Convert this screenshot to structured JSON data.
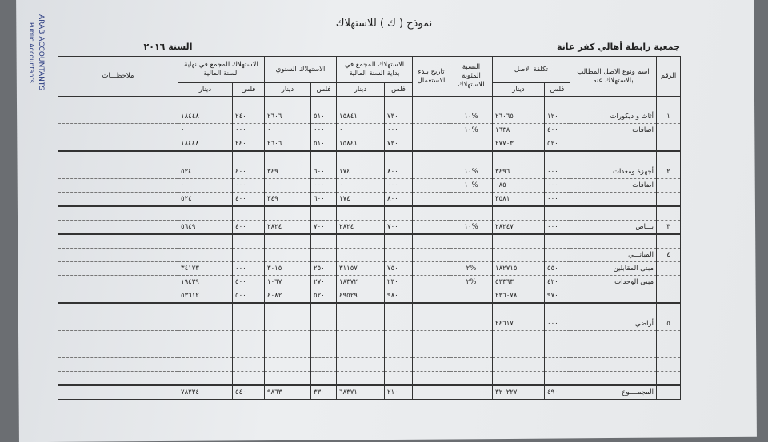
{
  "document": {
    "title": "نموذج ( ك ) للاستهلاك",
    "organization": "جمعية رابطة أهالي كفر عانة",
    "year": "السنة ٢٠١٦",
    "stamp": [
      "ARAB ACCOUNTANTS",
      "Public Accountants"
    ]
  },
  "table": {
    "headers": {
      "no": "الرقم",
      "asset": "اسم ونوع الاصل المطالب بالاستهلاك عنه",
      "cost": "تكلفة الاصل",
      "rate": "النسبة المئوية للاستهلاك",
      "start": "تاريخ بـدء الاستعمال",
      "opening": "الاستهلاك المجمع في بداية السنة المالية",
      "annual": "الاستهلاك السنوي",
      "closing": "الاستهلاك المجمع في نهاية السنة المالية",
      "notes": "ملاحظـــات",
      "fils": "فلس",
      "dinar": "دينار"
    },
    "rows": [
      {
        "type": "blank"
      },
      {
        "no": "١",
        "name": "أثاث و ديكورات",
        "cost_fils": "١٢٠",
        "cost_dinar": "٢٦٠٦٥",
        "rate": "%١٠",
        "open_fils": "٧٣٠",
        "open_dinar": "١٥٨٤١",
        "annual_fils": "٥١٠",
        "annual_dinar": "٢٦٠٦",
        "close_fils": "٢٤٠",
        "close_dinar": "١٨٤٤٨"
      },
      {
        "name": "اضافات",
        "cost_fils": "٤٠٠",
        "cost_dinar": "١٦٣٨",
        "rate": "%١٠",
        "open_fils": "٠٠٠",
        "open_dinar": "٠",
        "annual_fils": "٠٠٠",
        "annual_dinar": "٠",
        "close_fils": "٠٠٠",
        "close_dinar": "٠"
      },
      {
        "type": "total",
        "cost_fils": "٥٢٠",
        "cost_dinar": "٢٧٧٠٣",
        "open_fils": "٧٣٠",
        "open_dinar": "١٥٨٤١",
        "annual_fils": "٥١٠",
        "annual_dinar": "٢٦٠٦",
        "close_fils": "٢٤٠",
        "close_dinar": "١٨٤٤٨"
      },
      {
        "type": "blank"
      },
      {
        "no": "٢",
        "name": "أجهزة ومعدات",
        "cost_fils": "٠٠٠",
        "cost_dinar": "٣٤٩٦",
        "rate": "%١٠",
        "open_fils": "٨٠٠",
        "open_dinar": "١٧٤",
        "annual_fils": "٦٠٠",
        "annual_dinar": "٣٤٩",
        "close_fils": "٤٠٠",
        "close_dinar": "٥٢٤"
      },
      {
        "name": "اضافات",
        "cost_fils": "٠٠٠",
        "cost_dinar": "٠٨٥",
        "rate": "%١٠",
        "open_fils": "٠٠٠",
        "open_dinar": "٠",
        "annual_fils": "٠٠٠",
        "annual_dinar": "٠",
        "close_fils": "٠٠٠",
        "close_dinar": "٠"
      },
      {
        "type": "total",
        "cost_fils": "٠٠٠",
        "cost_dinar": "٣٥٨١",
        "open_fils": "٨٠٠",
        "open_dinar": "١٧٤",
        "annual_fils": "٦٠٠",
        "annual_dinar": "٣٤٩",
        "close_fils": "٤٠٠",
        "close_dinar": "٥٢٤"
      },
      {
        "type": "blank"
      },
      {
        "type": "total",
        "no": "٣",
        "name": "بـــاص",
        "cost_fils": "٠٠٠",
        "cost_dinar": "٢٨٢٤٧",
        "rate": "%١٠",
        "open_fils": "٧٠٠",
        "open_dinar": "٢٨٢٤",
        "annual_fils": "٧٠٠",
        "annual_dinar": "٢٨٢٤",
        "close_fils": "٤٠٠",
        "close_dinar": "٥٦٤٩"
      },
      {
        "type": "blank"
      },
      {
        "no": "٤",
        "name": "المبانـــي"
      },
      {
        "name": "مبنى المقابلين",
        "cost_fils": "٥٥٠",
        "cost_dinar": "١٨٢٧١٥",
        "rate": "%٢",
        "open_fils": "٧٥٠",
        "open_dinar": "٣١١٥٧",
        "annual_fils": "٢٥٠",
        "annual_dinar": "٣٠١٥",
        "close_fils": "٠٠٠",
        "close_dinar": "٣٤١٧٣"
      },
      {
        "name": "مبنى الوحدات",
        "cost_fils": "٤٢٠",
        "cost_dinar": "٥٣٣٦٣",
        "rate": "%٢",
        "open_fils": "٢٣٠",
        "open_dinar": "١٨٣٧٢",
        "annual_fils": "٢٧٠",
        "annual_dinar": "١٠٦٧",
        "close_fils": "٥٠٠",
        "close_dinar": "١٩٤٣٩"
      },
      {
        "type": "total",
        "cost_fils": "٩٧٠",
        "cost_dinar": "٢٣٦٠٧٨",
        "open_fils": "٩٨٠",
        "open_dinar": "٤٩٥٢٩",
        "annual_fils": "٥٢٠",
        "annual_dinar": "٤٠٨٢",
        "close_fils": "٥٠٠",
        "close_dinar": "٥٣٦١٢"
      },
      {
        "type": "blank"
      },
      {
        "no": "٥",
        "name": "أراضي",
        "cost_fils": "٠٠٠",
        "cost_dinar": "٢٤٦١٧"
      },
      {
        "type": "blank"
      },
      {
        "type": "blank"
      },
      {
        "type": "blank"
      },
      {
        "type": "blank"
      },
      {
        "type": "grand",
        "name": "المجمــــوع",
        "cost_fils": "٤٩٠",
        "cost_dinar": "٣٢٠٢٢٧",
        "open_fils": "٢١٠",
        "open_dinar": "٦٨٣٧١",
        "annual_fils": "٣٣٠",
        "annual_dinar": "٩٨٦٣",
        "close_fils": "٥٤٠",
        "close_dinar": "٧٨٢٣٤"
      }
    ]
  }
}
